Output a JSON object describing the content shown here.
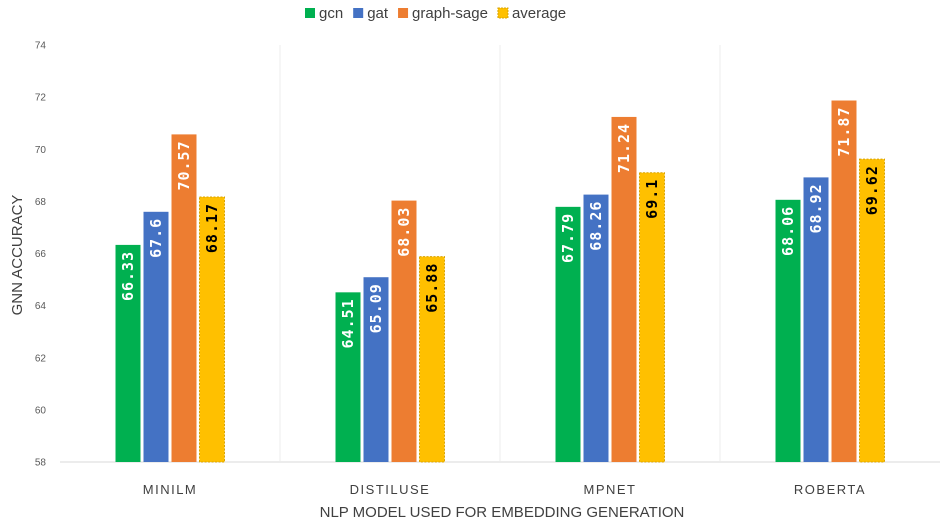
{
  "chart_data": {
    "type": "bar",
    "title": "",
    "xlabel": "NLP MODEL USED FOR EMBEDDING GENERATION",
    "ylabel": "GNN ACCURACY",
    "ylim": [
      58,
      74
    ],
    "yticks": [
      58,
      60,
      62,
      64,
      66,
      68,
      70,
      72,
      74
    ],
    "grid": "vertical separators between categories",
    "legend_position": "top-center",
    "categories": [
      "MINILM",
      "DISTILUSE",
      "MPNET",
      "ROBERTA"
    ],
    "series": [
      {
        "name": "gcn",
        "color": "#00b050",
        "label_color": "#ffffff",
        "values": [
          66.33,
          64.51,
          67.79,
          68.06
        ],
        "labels": [
          "66.33",
          "64.51",
          "67.79",
          "68.06"
        ]
      },
      {
        "name": "gat",
        "color": "#4472c4",
        "label_color": "#ffffff",
        "values": [
          67.6,
          65.09,
          68.26,
          68.92
        ],
        "labels": [
          "67.6",
          "65.09",
          "68.26",
          "68.92"
        ]
      },
      {
        "name": "graph-sage",
        "color": "#ed7d31",
        "label_color": "#ffffff",
        "values": [
          70.57,
          68.03,
          71.24,
          71.87
        ],
        "labels": [
          "70.57",
          "68.03",
          "71.24",
          "71.87"
        ]
      },
      {
        "name": "average",
        "color": "#ffc000",
        "label_color": "#000000",
        "values": [
          68.17,
          65.88,
          69.1,
          69.62
        ],
        "labels": [
          "68.17",
          "65.88",
          "69.1",
          "69.62"
        ],
        "dashed_border": true
      }
    ]
  }
}
